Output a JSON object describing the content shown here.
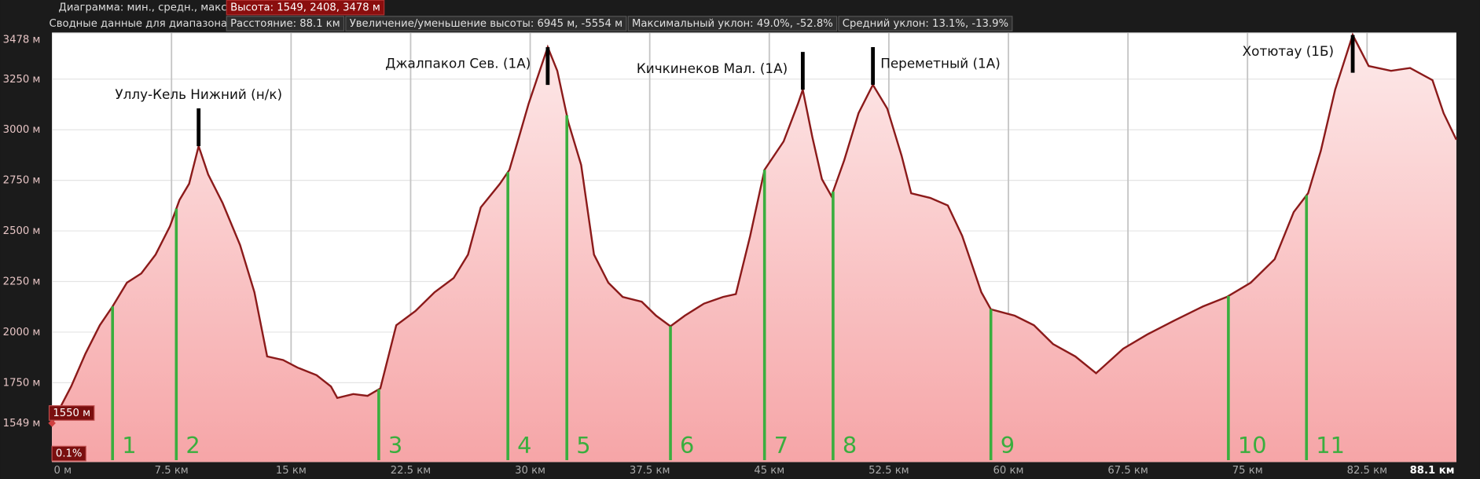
{
  "chart_data": {
    "type": "area",
    "header": {
      "diagram_label": "Диаграмма: мин., средн., макс.",
      "height_stats": "Высота: 1549, 2408, 3478 м",
      "range_label": "Сводные данные для диапазона:",
      "stats": [
        "Расстояние: 88.1 км",
        "Увеличение/уменьшение высоты: 6945 м, -5554 м",
        "Максимальный уклон: 49.0%, -52.8%",
        "Средний уклон: 13.1%, -13.9%"
      ]
    },
    "x": [
      0,
      1.2,
      2.1,
      3.0,
      3.8,
      4.7,
      5.6,
      6.5,
      7.4,
      8.0,
      8.6,
      9.2,
      9.8,
      10.7,
      11.8,
      12.7,
      13.5,
      14.5,
      15.4,
      16.6,
      17.5,
      17.9,
      18.9,
      19.8,
      20.6,
      21.6,
      22.8,
      24.0,
      25.2,
      26.1,
      26.9,
      28.1,
      28.7,
      29.3,
      29.9,
      30.8,
      31.1,
      31.7,
      32.4,
      33.2,
      34.0,
      34.9,
      35.8,
      37.0,
      37.9,
      38.8,
      39.7,
      40.9,
      42.1,
      42.9,
      43.8,
      44.7,
      45.9,
      46.8,
      47.1,
      47.7,
      48.3,
      48.9,
      49.7,
      50.6,
      51.5,
      52.4,
      53.3,
      53.9,
      55.1,
      56.2,
      57.1,
      58.3,
      58.9,
      60.4,
      61.6,
      62.8,
      64.2,
      65.5,
      67.2,
      68.7,
      70.4,
      72.2,
      73.7,
      75.2,
      76.7,
      77.9,
      78.8,
      79.6,
      80.5,
      81.6,
      82.6,
      84.0,
      85.2,
      86.6,
      87.3,
      88.1
    ],
    "values": [
      1550,
      1731,
      1894,
      2034,
      2127,
      2244,
      2290,
      2383,
      2523,
      2653,
      2733,
      2919,
      2779,
      2639,
      2430,
      2197,
      1880,
      1862,
      1825,
      1787,
      1731,
      1675,
      1694,
      1685,
      1722,
      2034,
      2104,
      2197,
      2267,
      2383,
      2616,
      2733,
      2802,
      2965,
      3128,
      3338,
      3408,
      3291,
      3035,
      2826,
      2383,
      2244,
      2174,
      2150,
      2081,
      2029,
      2081,
      2141,
      2174,
      2188,
      2476,
      2802,
      2942,
      3128,
      3198,
      2965,
      2756,
      2672,
      2849,
      3082,
      3222,
      3105,
      2872,
      2686,
      2663,
      2626,
      2476,
      2197,
      2113,
      2081,
      2034,
      1941,
      1880,
      1797,
      1918,
      1988,
      2057,
      2127,
      2174,
      2244,
      2360,
      2593,
      2686,
      2896,
      3198,
      3468,
      3315,
      3291,
      3305,
      3245,
      3082,
      2951
    ],
    "color": "#8b1a1a",
    "xlim": [
      0,
      88.1
    ],
    "ylim": [
      1358,
      3478
    ],
    "xticks": [
      {
        "value": 0,
        "label": "0 м"
      },
      {
        "value": 7.5,
        "label": "7.5 км"
      },
      {
        "value": 15,
        "label": "15 км"
      },
      {
        "value": 22.5,
        "label": "22.5 км"
      },
      {
        "value": 30,
        "label": "30 км"
      },
      {
        "value": 37.5,
        "label": "37.5 км"
      },
      {
        "value": 45,
        "label": "45 км"
      },
      {
        "value": 52.5,
        "label": "52.5 км"
      },
      {
        "value": 60,
        "label": "60 км"
      },
      {
        "value": 67.5,
        "label": "67.5 км"
      },
      {
        "value": 75,
        "label": "75 км"
      },
      {
        "value": 82.5,
        "label": "82.5 км"
      },
      {
        "value": 88.1,
        "label": "88.1 км"
      }
    ],
    "yticks": [
      {
        "value": 1549,
        "label": "1549 м"
      },
      {
        "value": 1750,
        "label": "1750 м"
      },
      {
        "value": 2000,
        "label": "2000 м"
      },
      {
        "value": 2250,
        "label": "2250 м"
      },
      {
        "value": 2500,
        "label": "2500 м"
      },
      {
        "value": 2750,
        "label": "2750 м"
      },
      {
        "value": 3000,
        "label": "3000 м"
      },
      {
        "value": 3250,
        "label": "3250 м"
      },
      {
        "value": 3478,
        "label": "3478 м"
      }
    ],
    "grid": true,
    "cursor": {
      "elevation_label": "1550 м",
      "slope_label": "0.1%"
    },
    "markers": [
      {
        "label": "1",
        "x": 3.8
      },
      {
        "label": "2",
        "x": 7.8
      },
      {
        "label": "3",
        "x": 20.5
      },
      {
        "label": "4",
        "x": 28.6
      },
      {
        "label": "5",
        "x": 32.3
      },
      {
        "label": "6",
        "x": 38.8
      },
      {
        "label": "7",
        "x": 44.7
      },
      {
        "label": "8",
        "x": 49.0
      },
      {
        "label": "9",
        "x": 58.9
      },
      {
        "label": "10",
        "x": 73.8
      },
      {
        "label": "11",
        "x": 78.7
      }
    ],
    "peaks": [
      {
        "label": "Уллу-Кель Нижний (н/к)",
        "x": 9.2
      },
      {
        "label": "Джалпакол Сев. (1А)",
        "x": 31.1
      },
      {
        "label": "Кичкинеков Мал. (1А)",
        "x": 47.1
      },
      {
        "label": "Переметный (1А)",
        "x": 51.5
      },
      {
        "label": "Хотютау (1Б)",
        "x": 81.6
      }
    ]
  }
}
